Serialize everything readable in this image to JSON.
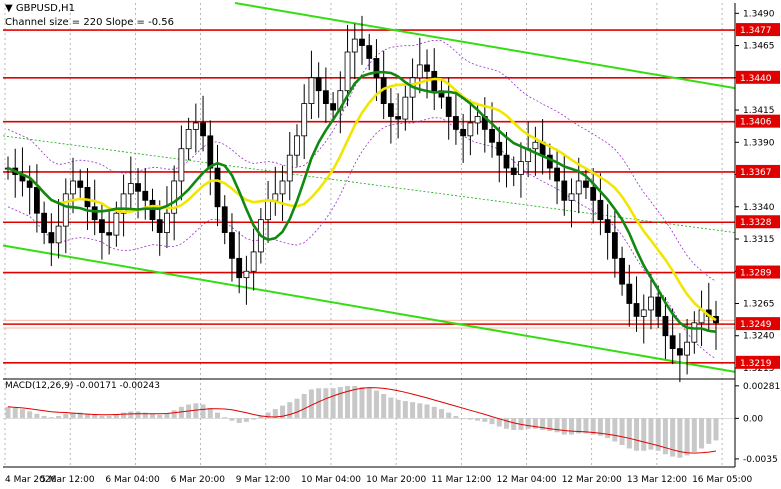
{
  "chart_data": {
    "type": "candlestick",
    "symbol_title": "GBPUSD,H1",
    "indicator_info": "Channel size = 220 Slope = -0.56",
    "macd_title": "MACD(12,26,9) -0.00171 -0.00243",
    "price_ticks": [
      "1.3490",
      "1.3465",
      "1.3440",
      "1.3415",
      "1.3390",
      "1.3365",
      "1.3340",
      "1.3315",
      "1.3290",
      "1.3265",
      "1.3240",
      "1.3215"
    ],
    "ylim": [
      1.3208,
      1.3498
    ],
    "macd_ticks": [
      "0.00281",
      "0.00",
      "-0.0035"
    ],
    "macd_ylim": [
      -0.0042,
      0.0034
    ],
    "x_labels": [
      "4 Mar 2026",
      "5 Mar 12:00",
      "6 Mar 04:00",
      "6 Mar 20:00",
      "9 Mar 12:00",
      "10 Mar 04:00",
      "10 Mar 20:00",
      "11 Mar 12:00",
      "12 Mar 04:00",
      "12 Mar 20:00",
      "13 Mar 12:00",
      "16 Mar 05:00"
    ],
    "levels": [
      {
        "label": "1.3477",
        "value": 1.3477
      },
      {
        "label": "1.3440",
        "value": 1.344
      },
      {
        "label": "1.3406",
        "value": 1.3406
      },
      {
        "label": "1.3367",
        "value": 1.3367
      },
      {
        "label": "1.3328",
        "value": 1.3328
      },
      {
        "label": "1.3289",
        "value": 1.3289
      },
      {
        "label": "1.3249",
        "value": 1.3249
      },
      {
        "label": "1.3219",
        "value": 1.3219
      }
    ],
    "closes": [
      1.337,
      1.3365,
      1.336,
      1.3355,
      1.3335,
      1.332,
      1.3312,
      1.3325,
      1.335,
      1.336,
      1.3355,
      1.334,
      1.333,
      1.332,
      1.3318,
      1.3335,
      1.335,
      1.3358,
      1.3352,
      1.3345,
      1.333,
      1.332,
      1.3335,
      1.336,
      1.3385,
      1.34,
      1.3405,
      1.3395,
      1.337,
      1.334,
      1.332,
      1.33,
      1.3285,
      1.329,
      1.3305,
      1.333,
      1.3345,
      1.335,
      1.336,
      1.338,
      1.3395,
      1.342,
      1.344,
      1.343,
      1.342,
      1.3415,
      1.343,
      1.346,
      1.347,
      1.3465,
      1.3455,
      1.344,
      1.342,
      1.341,
      1.3408,
      1.3425,
      1.344,
      1.345,
      1.3445,
      1.343,
      1.3425,
      1.341,
      1.34,
      1.3395,
      1.3405,
      1.341,
      1.34,
      1.339,
      1.338,
      1.337,
      1.3365,
      1.3375,
      1.3385,
      1.339,
      1.338,
      1.337,
      1.336,
      1.3345,
      1.335,
      1.336,
      1.3355,
      1.3345,
      1.333,
      1.332,
      1.33,
      1.328,
      1.3265,
      1.3255,
      1.326,
      1.327,
      1.3255,
      1.324,
      1.323,
      1.3225,
      1.3235,
      1.325,
      1.326,
      1.3255,
      1.325
    ],
    "macd_hist": [
      0.001,
      0.0009,
      0.0008,
      0.0006,
      0.0004,
      0.0002,
      0.0001,
      0.0002,
      0.0004,
      0.0005,
      0.0005,
      0.0004,
      0.0003,
      0.0002,
      0.0002,
      0.0003,
      0.0005,
      0.0006,
      0.0006,
      0.0005,
      0.0004,
      0.0003,
      0.0004,
      0.0007,
      0.001,
      0.0012,
      0.0013,
      0.0012,
      0.0009,
      0.0005,
      0.0001,
      -0.0002,
      -0.0004,
      -0.0003,
      -0.0001,
      0.0002,
      0.0005,
      0.0008,
      0.0011,
      0.0014,
      0.0017,
      0.0021,
      0.0025,
      0.0026,
      0.0026,
      0.0026,
      0.0027,
      0.0028,
      0.0028,
      0.0027,
      0.0026,
      0.0024,
      0.0021,
      0.0018,
      0.0016,
      0.0015,
      0.0014,
      0.0013,
      0.0012,
      0.001,
      0.0008,
      0.0005,
      0.0002,
      0.0,
      -0.0001,
      -0.0002,
      -0.0003,
      -0.0005,
      -0.0007,
      -0.0009,
      -0.001,
      -0.001,
      -0.0009,
      -0.0009,
      -0.001,
      -0.0011,
      -0.0012,
      -0.0014,
      -0.0014,
      -0.0013,
      -0.0013,
      -0.0014,
      -0.0015,
      -0.0017,
      -0.002,
      -0.0023,
      -0.0026,
      -0.0028,
      -0.0028,
      -0.0027,
      -0.0028,
      -0.0031,
      -0.0033,
      -0.0034,
      -0.0032,
      -0.0029,
      -0.0026,
      -0.0022,
      -0.0019
    ],
    "colors": {
      "candle": "#000000",
      "level": "#e00000",
      "ma_fast": "#118811",
      "ma_slow": "#f2e600",
      "channel": "#33dd11",
      "channel_mid": "#11aa11",
      "band": "#9933cc",
      "macd_bar": "#c8c8c8",
      "macd_signal": "#e00000"
    }
  }
}
